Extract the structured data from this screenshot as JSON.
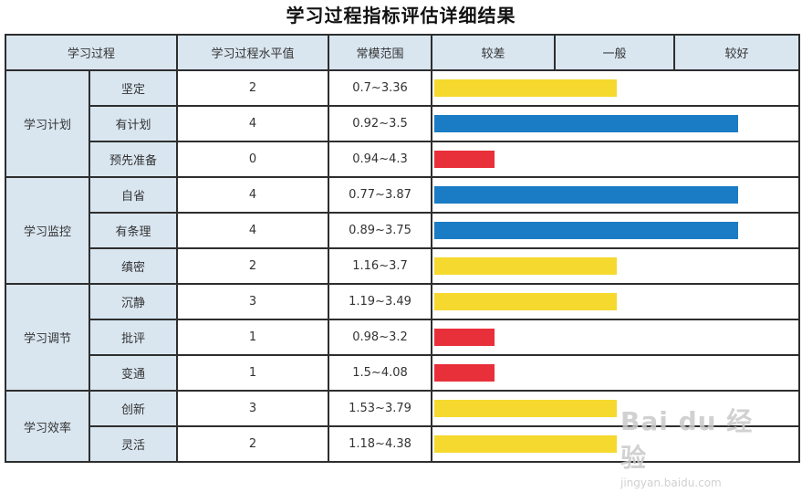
{
  "title": "学习过程指标评估详细结果",
  "headers": {
    "process": "学习过程",
    "value": "学习过程水平值",
    "norm": "常模范围",
    "poor": "较差",
    "average": "一般",
    "good": "较好"
  },
  "colors": {
    "low": "#e8303a",
    "mid": "#f5d92e",
    "high": "#1a7cc4",
    "header_bg": "#d9e6f0"
  },
  "chart_data": {
    "type": "table",
    "title": "学习过程指标评估详细结果",
    "value_range": [
      0,
      4
    ],
    "groups": [
      {
        "name": "学习计划",
        "rows": [
          {
            "name": "坚定",
            "value": 2,
            "norm": "0.7~3.36"
          },
          {
            "name": "有计划",
            "value": 4,
            "norm": "0.92~3.5"
          },
          {
            "name": "预先准备",
            "value": 0,
            "norm": "0.94~4.3"
          }
        ]
      },
      {
        "name": "学习监控",
        "rows": [
          {
            "name": "自省",
            "value": 4,
            "norm": "0.77~3.87"
          },
          {
            "name": "有条理",
            "value": 4,
            "norm": "0.89~3.75"
          },
          {
            "name": "缜密",
            "value": 2,
            "norm": "1.16~3.7"
          }
        ]
      },
      {
        "name": "学习调节",
        "rows": [
          {
            "name": "沉静",
            "value": 3,
            "norm": "1.19~3.49"
          },
          {
            "name": "批评",
            "value": 1,
            "norm": "0.98~3.2"
          },
          {
            "name": "变通",
            "value": 1,
            "norm": "1.5~4.08"
          }
        ]
      },
      {
        "name": "学习效率",
        "rows": [
          {
            "name": "创新",
            "value": 3,
            "norm": "1.53~3.79"
          },
          {
            "name": "灵活",
            "value": 2,
            "norm": "1.18~4.38"
          }
        ]
      }
    ]
  },
  "watermark": {
    "main": "Bai du 经验",
    "sub": "jingyan.baidu.com"
  }
}
